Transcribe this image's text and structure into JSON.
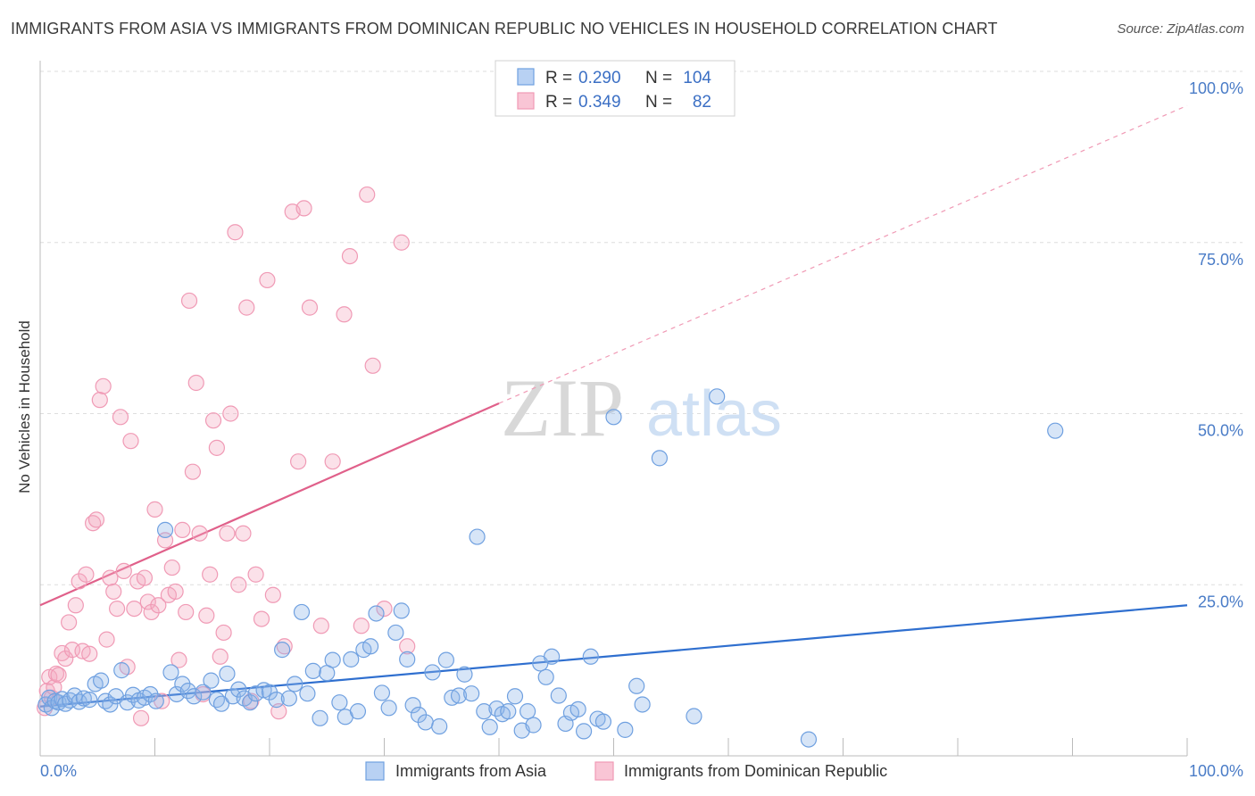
{
  "title": "IMMIGRANTS FROM ASIA VS IMMIGRANTS FROM DOMINICAN REPUBLIC NO VEHICLES IN HOUSEHOLD CORRELATION CHART",
  "source": "Source: ZipAtlas.com",
  "watermark": {
    "zip": "ZIP",
    "atlas": "atlas"
  },
  "legend": {
    "rows": [
      {
        "r_label": "R =",
        "r_value": "0.290",
        "n_label": "N =",
        "n_value": "104",
        "color": "#6fa0e0"
      },
      {
        "r_label": "R =",
        "r_value": "0.349",
        "n_label": "N =",
        "n_value": "82",
        "color": "#f09ab5"
      }
    ]
  },
  "bottom_legend": [
    "Immigrants from Asia",
    "Immigrants from Dominican Republic"
  ],
  "colors": {
    "asia": "#6fa0e0",
    "asia_line": "#2f6fcf",
    "dr": "#f09ab5",
    "dr_line": "#e0608a",
    "tick": "#4a7cc7"
  },
  "chart_data": {
    "type": "scatter",
    "title": "IMMIGRANTS FROM ASIA VS IMMIGRANTS FROM DOMINICAN REPUBLIC NO VEHICLES IN HOUSEHOLD CORRELATION CHART",
    "xlabel": "",
    "ylabel": "No Vehicles in Household",
    "xlim": [
      0,
      100
    ],
    "ylim": [
      0,
      100
    ],
    "x_tick_labels": [
      "0.0%",
      "100.0%"
    ],
    "y_ticks": [
      25,
      50,
      75,
      100
    ],
    "y_tick_labels": [
      "25.0%",
      "50.0%",
      "75.0%",
      "100.0%"
    ],
    "grid": true,
    "legend_position": "top-center",
    "series": [
      {
        "name": "Immigrants from Asia",
        "color": "#6fa0e0",
        "trend": {
          "x": [
            0,
            100
          ],
          "y": [
            7.2,
            22.0
          ],
          "style": "solid"
        },
        "points": [
          [
            0.5,
            7.5
          ],
          [
            0.8,
            8.5
          ],
          [
            1.0,
            7.0
          ],
          [
            1.3,
            8.0
          ],
          [
            1.6,
            7.8
          ],
          [
            1.9,
            8.3
          ],
          [
            2.2,
            7.6
          ],
          [
            2.6,
            8.1
          ],
          [
            3.0,
            8.8
          ],
          [
            3.4,
            7.9
          ],
          [
            3.8,
            8.4
          ],
          [
            4.3,
            8.2
          ],
          [
            4.8,
            10.5
          ],
          [
            5.3,
            11.0
          ],
          [
            5.7,
            8.0
          ],
          [
            6.1,
            7.5
          ],
          [
            6.6,
            8.7
          ],
          [
            7.1,
            12.5
          ],
          [
            7.6,
            7.8
          ],
          [
            8.1,
            8.9
          ],
          [
            8.6,
            8.1
          ],
          [
            9.1,
            8.5
          ],
          [
            9.6,
            9.0
          ],
          [
            10.1,
            8.0
          ],
          [
            10.9,
            33.0
          ],
          [
            11.4,
            12.2
          ],
          [
            11.9,
            9.0
          ],
          [
            12.4,
            10.5
          ],
          [
            12.9,
            9.5
          ],
          [
            13.4,
            8.7
          ],
          [
            14.2,
            9.3
          ],
          [
            14.9,
            11.0
          ],
          [
            15.4,
            8.2
          ],
          [
            15.8,
            7.6
          ],
          [
            16.3,
            12.0
          ],
          [
            16.8,
            8.7
          ],
          [
            17.3,
            9.7
          ],
          [
            17.8,
            8.4
          ],
          [
            18.3,
            7.8
          ],
          [
            18.8,
            9.1
          ],
          [
            19.5,
            9.6
          ],
          [
            20.0,
            9.3
          ],
          [
            20.6,
            8.2
          ],
          [
            21.1,
            15.5
          ],
          [
            21.7,
            8.4
          ],
          [
            22.2,
            10.5
          ],
          [
            22.8,
            21.0
          ],
          [
            23.3,
            9.1
          ],
          [
            23.8,
            12.4
          ],
          [
            24.4,
            5.5
          ],
          [
            25.0,
            12.1
          ],
          [
            25.5,
            14.0
          ],
          [
            26.1,
            7.8
          ],
          [
            26.6,
            5.7
          ],
          [
            27.1,
            14.1
          ],
          [
            27.7,
            6.5
          ],
          [
            28.2,
            15.5
          ],
          [
            28.8,
            16.0
          ],
          [
            29.3,
            20.8
          ],
          [
            29.8,
            9.2
          ],
          [
            30.4,
            7.0
          ],
          [
            31.0,
            18.0
          ],
          [
            31.5,
            21.2
          ],
          [
            32.0,
            14.1
          ],
          [
            32.5,
            7.4
          ],
          [
            33.0,
            6.0
          ],
          [
            33.6,
            4.9
          ],
          [
            34.2,
            12.2
          ],
          [
            34.8,
            4.3
          ],
          [
            35.4,
            14.0
          ],
          [
            35.9,
            8.5
          ],
          [
            36.5,
            8.8
          ],
          [
            37.0,
            11.9
          ],
          [
            37.6,
            9.1
          ],
          [
            38.1,
            32.0
          ],
          [
            38.7,
            6.5
          ],
          [
            39.2,
            4.2
          ],
          [
            39.8,
            6.9
          ],
          [
            40.3,
            6.1
          ],
          [
            40.8,
            6.5
          ],
          [
            41.4,
            8.7
          ],
          [
            42.0,
            3.7
          ],
          [
            42.5,
            6.5
          ],
          [
            43.0,
            4.5
          ],
          [
            43.6,
            13.5
          ],
          [
            44.1,
            11.5
          ],
          [
            44.6,
            14.5
          ],
          [
            45.2,
            8.8
          ],
          [
            45.8,
            4.7
          ],
          [
            46.3,
            6.3
          ],
          [
            46.9,
            6.8
          ],
          [
            47.4,
            3.6
          ],
          [
            48.0,
            14.5
          ],
          [
            48.6,
            5.4
          ],
          [
            49.1,
            5.0
          ],
          [
            50.0,
            49.5
          ],
          [
            51.0,
            3.8
          ],
          [
            52.0,
            10.2
          ],
          [
            52.5,
            7.5
          ],
          [
            54.0,
            43.5
          ],
          [
            57.0,
            5.8
          ],
          [
            59.0,
            52.5
          ],
          [
            67.0,
            2.4
          ],
          [
            88.5,
            47.5
          ]
        ]
      },
      {
        "name": "Immigrants from Dominican Republic",
        "color": "#f09ab5",
        "trend": {
          "x": [
            0,
            40
          ],
          "y": [
            22.0,
            51.5
          ],
          "style": "solid",
          "extended": {
            "x": [
              40,
              100
            ],
            "y": [
              51.5,
              95.0
            ],
            "style": "dashed"
          }
        },
        "points": [
          [
            0.4,
            7.0
          ],
          [
            0.6,
            9.5
          ],
          [
            0.8,
            11.5
          ],
          [
            1.0,
            8.5
          ],
          [
            1.2,
            10.0
          ],
          [
            1.4,
            12.0
          ],
          [
            1.6,
            11.8
          ],
          [
            1.9,
            15.0
          ],
          [
            2.2,
            14.2
          ],
          [
            2.5,
            19.5
          ],
          [
            2.8,
            15.5
          ],
          [
            3.1,
            22.0
          ],
          [
            3.4,
            25.5
          ],
          [
            3.7,
            15.3
          ],
          [
            4.0,
            26.5
          ],
          [
            4.3,
            14.9
          ],
          [
            4.6,
            34.0
          ],
          [
            4.9,
            34.5
          ],
          [
            5.2,
            52.0
          ],
          [
            5.5,
            54.0
          ],
          [
            5.8,
            17.0
          ],
          [
            6.1,
            26.0
          ],
          [
            6.4,
            24.0
          ],
          [
            6.7,
            21.5
          ],
          [
            7.0,
            49.5
          ],
          [
            7.3,
            27.0
          ],
          [
            7.6,
            13.0
          ],
          [
            7.9,
            46.0
          ],
          [
            8.2,
            21.5
          ],
          [
            8.5,
            25.5
          ],
          [
            8.8,
            5.5
          ],
          [
            9.1,
            26.0
          ],
          [
            9.4,
            22.5
          ],
          [
            9.7,
            21.0
          ],
          [
            10.0,
            36.0
          ],
          [
            10.3,
            22.0
          ],
          [
            10.6,
            8.0
          ],
          [
            10.9,
            31.5
          ],
          [
            11.2,
            23.5
          ],
          [
            11.5,
            27.5
          ],
          [
            11.8,
            24.0
          ],
          [
            12.1,
            14.0
          ],
          [
            12.4,
            33.0
          ],
          [
            12.7,
            21.0
          ],
          [
            13.0,
            66.5
          ],
          [
            13.3,
            41.5
          ],
          [
            13.6,
            54.5
          ],
          [
            13.9,
            32.5
          ],
          [
            14.2,
            9.0
          ],
          [
            14.5,
            20.5
          ],
          [
            14.8,
            26.5
          ],
          [
            15.1,
            49.0
          ],
          [
            15.4,
            45.0
          ],
          [
            15.7,
            14.5
          ],
          [
            16.0,
            18.0
          ],
          [
            16.3,
            32.5
          ],
          [
            16.6,
            50.0
          ],
          [
            17.0,
            76.5
          ],
          [
            17.3,
            25.0
          ],
          [
            17.7,
            32.5
          ],
          [
            18.0,
            65.5
          ],
          [
            18.4,
            8.0
          ],
          [
            18.8,
            26.5
          ],
          [
            19.3,
            20.0
          ],
          [
            19.8,
            69.5
          ],
          [
            20.3,
            23.5
          ],
          [
            20.8,
            6.5
          ],
          [
            21.3,
            16.0
          ],
          [
            22.0,
            79.5
          ],
          [
            22.5,
            43.0
          ],
          [
            23.0,
            80.0
          ],
          [
            23.5,
            65.5
          ],
          [
            24.5,
            19.0
          ],
          [
            25.5,
            43.0
          ],
          [
            26.5,
            64.5
          ],
          [
            27.0,
            73.0
          ],
          [
            28.0,
            19.0
          ],
          [
            28.5,
            82.0
          ],
          [
            29.0,
            57.0
          ],
          [
            30.0,
            21.5
          ],
          [
            31.5,
            75.0
          ],
          [
            32.0,
            16.0
          ]
        ]
      }
    ]
  }
}
